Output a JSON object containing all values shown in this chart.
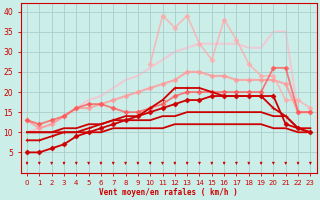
{
  "bg_color": "#cceee8",
  "grid_color": "#aacccc",
  "xlabel": "Vent moyen/en rafales ( km/h )",
  "xlim": [
    -0.5,
    23.5
  ],
  "ylim": [
    0,
    42
  ],
  "yticks": [
    5,
    10,
    15,
    20,
    25,
    30,
    35,
    40
  ],
  "xticks": [
    0,
    1,
    2,
    3,
    4,
    5,
    6,
    7,
    8,
    9,
    10,
    11,
    12,
    13,
    14,
    15,
    16,
    17,
    18,
    19,
    20,
    21,
    22,
    23
  ],
  "series": [
    {
      "comment": "dark red line with + markers - winds up to ~21 at peak, decreases",
      "x": [
        0,
        1,
        2,
        3,
        4,
        5,
        6,
        7,
        8,
        9,
        10,
        11,
        12,
        13,
        14,
        15,
        16,
        17,
        18,
        19,
        20,
        21,
        22,
        23
      ],
      "y": [
        8,
        8,
        9,
        10,
        10,
        11,
        12,
        13,
        14,
        14,
        16,
        18,
        21,
        21,
        21,
        20,
        19,
        19,
        19,
        19,
        16,
        14,
        11,
        10
      ],
      "color": "#cc0000",
      "lw": 1.3,
      "marker": "+",
      "ms": 3.5,
      "alpha": 1.0,
      "zorder": 4
    },
    {
      "comment": "dark red line - slowly increasing flat around 11-13",
      "x": [
        0,
        1,
        2,
        3,
        4,
        5,
        6,
        7,
        8,
        9,
        10,
        11,
        12,
        13,
        14,
        15,
        16,
        17,
        18,
        19,
        20,
        21,
        22,
        23
      ],
      "y": [
        10,
        10,
        10,
        10,
        10,
        10,
        10,
        11,
        11,
        11,
        11,
        11,
        12,
        12,
        12,
        12,
        12,
        12,
        12,
        12,
        11,
        11,
        10,
        10
      ],
      "color": "#cc0000",
      "lw": 1.3,
      "marker": null,
      "ms": 2,
      "alpha": 1.0,
      "zorder": 3
    },
    {
      "comment": "dark red line slightly higher",
      "x": [
        0,
        1,
        2,
        3,
        4,
        5,
        6,
        7,
        8,
        9,
        10,
        11,
        12,
        13,
        14,
        15,
        16,
        17,
        18,
        19,
        20,
        21,
        22,
        23
      ],
      "y": [
        10,
        10,
        10,
        11,
        11,
        12,
        12,
        13,
        13,
        13,
        13,
        14,
        14,
        15,
        15,
        15,
        15,
        15,
        15,
        15,
        14,
        14,
        11,
        11
      ],
      "color": "#cc0000",
      "lw": 1.3,
      "marker": null,
      "ms": 2,
      "alpha": 1.0,
      "zorder": 3
    },
    {
      "comment": "medium red line with diamond markers - starts low (5), rises steeply",
      "x": [
        0,
        1,
        2,
        3,
        4,
        5,
        6,
        7,
        8,
        9,
        10,
        11,
        12,
        13,
        14,
        15,
        16,
        17,
        18,
        19,
        20,
        21,
        22,
        23
      ],
      "y": [
        5,
        5,
        6,
        7,
        9,
        10,
        11,
        12,
        13,
        14,
        15,
        16,
        17,
        18,
        18,
        19,
        19,
        19,
        19,
        19,
        19,
        12,
        11,
        10
      ],
      "color": "#cc0000",
      "lw": 1.3,
      "marker": "D",
      "ms": 2.5,
      "alpha": 1.0,
      "zorder": 4
    },
    {
      "comment": "medium pink - diamonds, starts at ~13, rises to ~26, drops",
      "x": [
        0,
        1,
        2,
        3,
        4,
        5,
        6,
        7,
        8,
        9,
        10,
        11,
        12,
        13,
        14,
        15,
        16,
        17,
        18,
        19,
        20,
        21,
        22,
        23
      ],
      "y": [
        13,
        12,
        13,
        14,
        16,
        17,
        17,
        16,
        15,
        15,
        16,
        17,
        19,
        20,
        20,
        20,
        20,
        20,
        20,
        20,
        26,
        26,
        15,
        15
      ],
      "color": "#ff5555",
      "lw": 1.3,
      "marker": "D",
      "ms": 2.5,
      "alpha": 0.75,
      "zorder": 3
    },
    {
      "comment": "light pink line with diamonds - broad curve up to ~25 then drops",
      "x": [
        0,
        1,
        2,
        3,
        4,
        5,
        6,
        7,
        8,
        9,
        10,
        11,
        12,
        13,
        14,
        15,
        16,
        17,
        18,
        19,
        20,
        21,
        22,
        23
      ],
      "y": [
        13,
        11,
        12,
        14,
        16,
        16,
        17,
        18,
        19,
        20,
        21,
        22,
        23,
        25,
        25,
        24,
        24,
        23,
        23,
        23,
        23,
        22,
        15,
        15
      ],
      "color": "#ff9999",
      "lw": 1.5,
      "marker": "D",
      "ms": 2.5,
      "alpha": 0.8,
      "zorder": 2
    },
    {
      "comment": "very light pink line no markers - smooth curve to ~35",
      "x": [
        0,
        1,
        2,
        3,
        4,
        5,
        6,
        7,
        8,
        9,
        10,
        11,
        12,
        13,
        14,
        15,
        16,
        17,
        18,
        19,
        20,
        21,
        22,
        23
      ],
      "y": [
        10,
        11,
        12,
        14,
        16,
        18,
        19,
        21,
        23,
        24,
        26,
        28,
        30,
        31,
        32,
        32,
        32,
        32,
        31,
        31,
        35,
        35,
        15,
        15
      ],
      "color": "#ffbbcc",
      "lw": 1.5,
      "marker": null,
      "ms": 2,
      "alpha": 0.7,
      "zorder": 1
    },
    {
      "comment": "light pink wiggly with diamonds - peaks at ~39/40, drops",
      "x": [
        10,
        11,
        12,
        13,
        14,
        15,
        16,
        17,
        18,
        19,
        20,
        21,
        22,
        23
      ],
      "y": [
        27,
        39,
        36,
        39,
        32,
        28,
        38,
        33,
        27,
        24,
        24,
        18,
        18,
        16
      ],
      "color": "#ffaaaa",
      "lw": 1.2,
      "marker": "D",
      "ms": 2.5,
      "alpha": 0.75,
      "zorder": 2
    }
  ],
  "arrow_color": "#cc0000",
  "axes_color": "#cc0000",
  "tick_color": "#cc0000"
}
